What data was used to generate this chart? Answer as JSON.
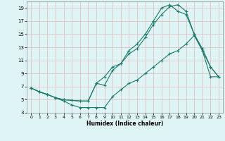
{
  "xlabel": "Humidex (Indice chaleur)",
  "bg_color": "#dff5f5",
  "grid_color": "#e0b8b8",
  "line_color": "#1a7a6a",
  "xlim": [
    -0.5,
    23.5
  ],
  "ylim": [
    3,
    20
  ],
  "xticks": [
    0,
    1,
    2,
    3,
    4,
    5,
    6,
    7,
    8,
    9,
    10,
    11,
    12,
    13,
    14,
    15,
    16,
    17,
    18,
    19,
    20,
    21,
    22,
    23
  ],
  "yticks": [
    3,
    5,
    7,
    9,
    11,
    13,
    15,
    17,
    19
  ],
  "line1_x": [
    0,
    1,
    2,
    3,
    4,
    5,
    6,
    7,
    8,
    9,
    10,
    11,
    12,
    13,
    14,
    15,
    16,
    17,
    18,
    19,
    20,
    21,
    22,
    23
  ],
  "line1_y": [
    6.8,
    6.2,
    5.8,
    5.3,
    5.0,
    4.9,
    4.8,
    4.8,
    7.5,
    7.2,
    9.5,
    10.5,
    12.0,
    12.8,
    14.5,
    16.5,
    18.0,
    19.2,
    19.5,
    18.5,
    15.0,
    12.8,
    10.0,
    8.5
  ],
  "line2_x": [
    0,
    1,
    2,
    3,
    4,
    5,
    6,
    7,
    8,
    9,
    10,
    11,
    12,
    13,
    14,
    15,
    16,
    17,
    18,
    19,
    20,
    21,
    22,
    23
  ],
  "line2_y": [
    6.8,
    6.2,
    5.8,
    5.3,
    4.8,
    4.2,
    3.8,
    3.8,
    3.8,
    3.8,
    5.5,
    6.5,
    7.5,
    8.0,
    9.0,
    10.0,
    11.0,
    12.0,
    12.5,
    13.5,
    14.8,
    12.5,
    10.0,
    8.5
  ],
  "line3_x": [
    0,
    1,
    2,
    3,
    4,
    5,
    6,
    7,
    8,
    9,
    10,
    11,
    12,
    13,
    14,
    15,
    16,
    17,
    18,
    19,
    20,
    21,
    22,
    23
  ],
  "line3_y": [
    6.8,
    6.2,
    5.8,
    5.3,
    5.0,
    4.9,
    4.8,
    4.8,
    7.5,
    8.5,
    10.0,
    10.5,
    12.5,
    13.5,
    15.0,
    17.0,
    19.0,
    19.5,
    18.5,
    18.0,
    15.0,
    12.5,
    8.5,
    8.5
  ]
}
